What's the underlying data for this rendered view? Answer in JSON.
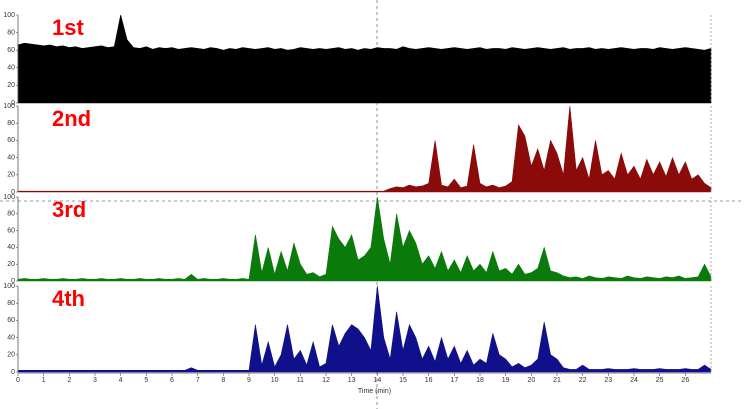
{
  "chart_data": [
    {
      "type": "area",
      "title": "1st",
      "color": "#000000",
      "xlim": [
        0,
        27
      ],
      "ylim": [
        0,
        100
      ],
      "yticks": [
        0,
        20,
        40,
        60,
        80,
        100
      ],
      "x": [
        0,
        0.25,
        0.5,
        0.75,
        1,
        1.25,
        1.5,
        1.75,
        2,
        2.25,
        2.5,
        2.75,
        3,
        3.25,
        3.5,
        3.75,
        4,
        4.25,
        4.5,
        4.75,
        5,
        5.25,
        5.5,
        5.75,
        6,
        6.25,
        6.5,
        6.75,
        7,
        7.25,
        7.5,
        7.75,
        8,
        8.25,
        8.5,
        8.75,
        9,
        9.25,
        9.5,
        9.75,
        10,
        10.25,
        10.5,
        10.75,
        11,
        11.25,
        11.5,
        11.75,
        12,
        12.25,
        12.5,
        12.75,
        13,
        13.25,
        13.5,
        13.75,
        14,
        14.25,
        14.5,
        14.75,
        15,
        15.25,
        15.5,
        15.75,
        16,
        16.25,
        16.5,
        16.75,
        17,
        17.25,
        17.5,
        17.75,
        18,
        18.25,
        18.5,
        18.75,
        19,
        19.25,
        19.5,
        19.75,
        20,
        20.25,
        20.5,
        20.75,
        21,
        21.25,
        21.5,
        21.75,
        22,
        22.25,
        22.5,
        22.75,
        23,
        23.25,
        23.5,
        23.75,
        24,
        24.25,
        24.5,
        24.75,
        25,
        25.25,
        25.5,
        25.75,
        26,
        26.25,
        26.5,
        26.75,
        27
      ],
      "values": [
        66,
        68,
        67,
        66,
        65,
        66,
        64,
        65,
        63,
        64,
        62,
        63,
        64,
        65,
        63,
        64,
        100,
        72,
        63,
        62,
        64,
        61,
        63,
        62,
        63,
        61,
        62,
        63,
        62,
        61,
        63,
        62,
        60,
        62,
        61,
        63,
        62,
        61,
        62,
        63,
        61,
        62,
        60,
        61,
        63,
        62,
        61,
        62,
        61,
        62,
        63,
        61,
        62,
        60,
        62,
        61,
        63,
        62,
        62,
        61,
        64,
        62,
        61,
        62,
        63,
        62,
        61,
        62,
        63,
        62,
        61,
        62,
        63,
        61,
        62,
        62,
        61,
        63,
        62,
        61,
        62,
        63,
        62,
        61,
        62,
        63,
        61,
        62,
        62,
        63,
        61,
        62,
        61,
        62,
        63,
        62,
        61,
        62,
        62,
        61,
        63,
        62,
        61,
        62,
        63,
        62,
        61,
        60,
        62
      ]
    },
    {
      "type": "area",
      "title": "2nd",
      "color": "#8b0a0a",
      "xlim": [
        0,
        27
      ],
      "ylim": [
        0,
        100
      ],
      "yticks": [
        0,
        20,
        40,
        60,
        80,
        100
      ],
      "x": [
        0,
        0.25,
        0.5,
        0.75,
        1,
        1.25,
        1.5,
        1.75,
        2,
        2.25,
        2.5,
        2.75,
        3,
        3.25,
        3.5,
        3.75,
        4,
        4.25,
        4.5,
        4.75,
        5,
        5.25,
        5.5,
        5.75,
        6,
        6.25,
        6.5,
        6.75,
        7,
        7.25,
        7.5,
        7.75,
        8,
        8.25,
        8.5,
        8.75,
        9,
        9.25,
        9.5,
        9.75,
        10,
        10.25,
        10.5,
        10.75,
        11,
        11.25,
        11.5,
        11.75,
        12,
        12.25,
        12.5,
        12.75,
        13,
        13.25,
        13.5,
        13.75,
        14,
        14.25,
        14.5,
        14.75,
        15,
        15.25,
        15.5,
        15.75,
        16,
        16.25,
        16.5,
        16.75,
        17,
        17.25,
        17.5,
        17.75,
        18,
        18.25,
        18.5,
        18.75,
        19,
        19.25,
        19.5,
        19.75,
        20,
        20.25,
        20.5,
        20.75,
        21,
        21.25,
        21.5,
        21.75,
        22,
        22.25,
        22.5,
        22.75,
        23,
        23.25,
        23.5,
        23.75,
        24,
        24.25,
        24.5,
        24.75,
        25,
        25.25,
        25.5,
        25.75,
        26,
        26.25,
        26.5,
        26.75,
        27
      ],
      "values": [
        1,
        1,
        1,
        1,
        1,
        1,
        1,
        1,
        1,
        1,
        1,
        1,
        1,
        1,
        1,
        1,
        1,
        1,
        1,
        1,
        1,
        1,
        1,
        1,
        1,
        1,
        1,
        1,
        1,
        1,
        1,
        1,
        1,
        1,
        1,
        1,
        1,
        1,
        1,
        1,
        1,
        1,
        1,
        1,
        1,
        1,
        1,
        1,
        1,
        1,
        1,
        1,
        1,
        1,
        1,
        1,
        1,
        1,
        4,
        6,
        5,
        8,
        6,
        7,
        10,
        60,
        8,
        6,
        15,
        5,
        7,
        55,
        10,
        6,
        8,
        5,
        7,
        12,
        78,
        65,
        30,
        50,
        25,
        60,
        45,
        20,
        100,
        25,
        40,
        15,
        60,
        20,
        25,
        15,
        45,
        20,
        30,
        15,
        38,
        20,
        35,
        18,
        40,
        20,
        35,
        15,
        20,
        10,
        5
      ]
    },
    {
      "type": "area",
      "title": "3rd",
      "color": "#0a7a0a",
      "xlim": [
        0,
        27
      ],
      "ylim": [
        0,
        100
      ],
      "yticks": [
        0,
        20,
        40,
        60,
        80,
        100
      ],
      "x": [
        0,
        0.25,
        0.5,
        0.75,
        1,
        1.25,
        1.5,
        1.75,
        2,
        2.25,
        2.5,
        2.75,
        3,
        3.25,
        3.5,
        3.75,
        4,
        4.25,
        4.5,
        4.75,
        5,
        5.25,
        5.5,
        5.75,
        6,
        6.25,
        6.5,
        6.75,
        7,
        7.25,
        7.5,
        7.75,
        8,
        8.25,
        8.5,
        8.75,
        9,
        9.25,
        9.5,
        9.75,
        10,
        10.25,
        10.5,
        10.75,
        11,
        11.25,
        11.5,
        11.75,
        12,
        12.25,
        12.5,
        12.75,
        13,
        13.25,
        13.5,
        13.75,
        14,
        14.25,
        14.5,
        14.75,
        15,
        15.25,
        15.5,
        15.75,
        16,
        16.25,
        16.5,
        16.75,
        17,
        17.25,
        17.5,
        17.75,
        18,
        18.25,
        18.5,
        18.75,
        19,
        19.25,
        19.5,
        19.75,
        20,
        20.25,
        20.5,
        20.75,
        21,
        21.25,
        21.5,
        21.75,
        22,
        22.25,
        22.5,
        22.75,
        23,
        23.25,
        23.5,
        23.75,
        24,
        24.25,
        24.5,
        24.75,
        25,
        25.25,
        25.5,
        25.75,
        26,
        26.25,
        26.5,
        26.75,
        27
      ],
      "values": [
        2,
        3,
        2,
        2,
        3,
        2,
        2,
        3,
        2,
        2,
        3,
        2,
        2,
        3,
        2,
        2,
        3,
        2,
        2,
        3,
        2,
        2,
        3,
        2,
        2,
        3,
        2,
        8,
        2,
        3,
        2,
        2,
        3,
        2,
        2,
        3,
        2,
        55,
        10,
        40,
        8,
        35,
        12,
        45,
        20,
        8,
        10,
        5,
        8,
        65,
        50,
        40,
        55,
        25,
        30,
        40,
        100,
        50,
        20,
        80,
        40,
        60,
        45,
        20,
        30,
        15,
        35,
        12,
        25,
        10,
        30,
        12,
        20,
        10,
        35,
        12,
        15,
        8,
        20,
        8,
        10,
        15,
        40,
        12,
        10,
        6,
        4,
        5,
        3,
        6,
        4,
        3,
        5,
        4,
        3,
        6,
        4,
        3,
        5,
        4,
        3,
        5,
        4,
        6,
        3,
        4,
        5,
        20,
        5
      ]
    },
    {
      "type": "area",
      "title": "4th",
      "color": "#10108a",
      "xlim": [
        0,
        27
      ],
      "ylim": [
        0,
        100
      ],
      "yticks": [
        0,
        20,
        40,
        60,
        80,
        100
      ],
      "xticks": [
        0,
        1,
        2,
        3,
        4,
        5,
        6,
        7,
        8,
        9,
        10,
        11,
        12,
        13,
        14,
        15,
        16,
        17,
        18,
        19,
        20,
        21,
        22,
        23,
        24,
        25,
        26
      ],
      "xlabel": "Time (min)",
      "x": [
        0,
        0.25,
        0.5,
        0.75,
        1,
        1.25,
        1.5,
        1.75,
        2,
        2.25,
        2.5,
        2.75,
        3,
        3.25,
        3.5,
        3.75,
        4,
        4.25,
        4.5,
        4.75,
        5,
        5.25,
        5.5,
        5.75,
        6,
        6.25,
        6.5,
        6.75,
        7,
        7.25,
        7.5,
        7.75,
        8,
        8.25,
        8.5,
        8.75,
        9,
        9.25,
        9.5,
        9.75,
        10,
        10.25,
        10.5,
        10.75,
        11,
        11.25,
        11.5,
        11.75,
        12,
        12.25,
        12.5,
        12.75,
        13,
        13.25,
        13.5,
        13.75,
        14,
        14.25,
        14.5,
        14.75,
        15,
        15.25,
        15.5,
        15.75,
        16,
        16.25,
        16.5,
        16.75,
        17,
        17.25,
        17.5,
        17.75,
        18,
        18.25,
        18.5,
        18.75,
        19,
        19.25,
        19.5,
        19.75,
        20,
        20.25,
        20.5,
        20.75,
        21,
        21.25,
        21.5,
        21.75,
        22,
        22.25,
        22.5,
        22.75,
        23,
        23.25,
        23.5,
        23.75,
        24,
        24.25,
        24.5,
        24.75,
        25,
        25.25,
        25.5,
        25.75,
        26,
        26.25,
        26.5,
        26.75,
        27
      ],
      "values": [
        2,
        2,
        2,
        2,
        2,
        2,
        2,
        2,
        2,
        2,
        2,
        2,
        2,
        2,
        2,
        2,
        2,
        2,
        2,
        2,
        2,
        2,
        2,
        2,
        2,
        2,
        2,
        5,
        2,
        2,
        2,
        2,
        2,
        2,
        2,
        2,
        2,
        55,
        8,
        35,
        6,
        20,
        55,
        15,
        25,
        8,
        35,
        6,
        10,
        55,
        30,
        45,
        55,
        50,
        40,
        25,
        100,
        40,
        15,
        70,
        25,
        55,
        40,
        15,
        30,
        12,
        40,
        15,
        30,
        10,
        25,
        8,
        15,
        10,
        45,
        20,
        15,
        6,
        10,
        5,
        8,
        15,
        58,
        20,
        15,
        5,
        3,
        3,
        8,
        3,
        3,
        3,
        4,
        3,
        3,
        3,
        4,
        3,
        3,
        3,
        4,
        3,
        3,
        3,
        4,
        3,
        3,
        8,
        3
      ]
    }
  ]
}
